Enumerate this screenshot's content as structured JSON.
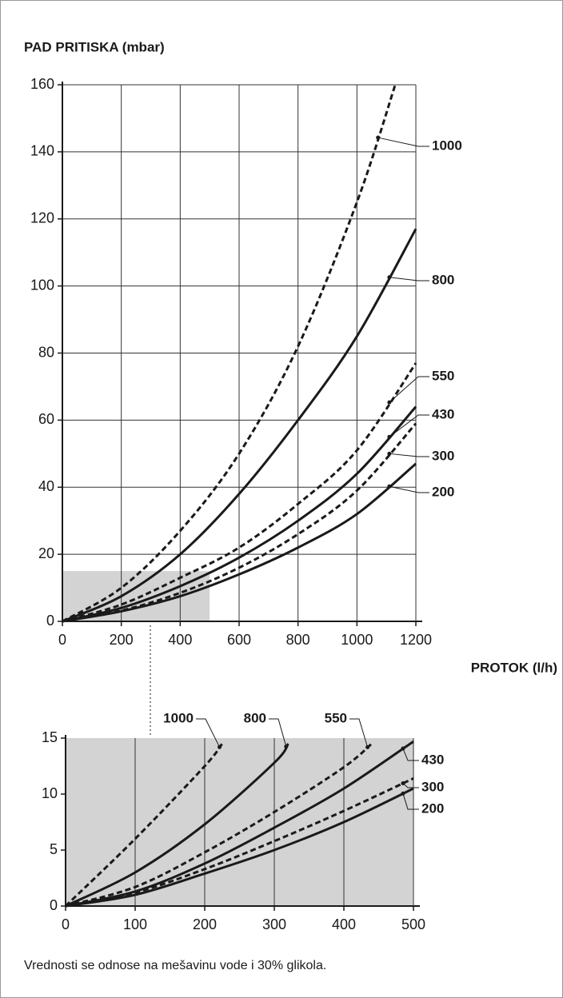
{
  "chart_data": [
    {
      "type": "line",
      "title": "PAD PRITISKA (mbar)",
      "x_label": "PROTOK (l/h)",
      "xlim": [
        0,
        1200
      ],
      "xticks": [
        0,
        200,
        400,
        600,
        800,
        1000,
        1200
      ],
      "ylim": [
        0,
        160
      ],
      "yticks": [
        0,
        20,
        40,
        60,
        80,
        100,
        120,
        140,
        160
      ],
      "grid": true,
      "series": [
        {
          "name": "1000",
          "color": "#1a1a1a",
          "dashed": true,
          "x": [
            0,
            200,
            400,
            600,
            800,
            1000,
            1130
          ],
          "values": [
            0,
            10,
            27,
            50,
            82,
            125,
            160
          ]
        },
        {
          "name": "800",
          "color": "#1a1a1a",
          "dashed": false,
          "x": [
            0,
            200,
            400,
            600,
            800,
            1000,
            1200
          ],
          "values": [
            0,
            7.5,
            20,
            38,
            60,
            85,
            117
          ]
        },
        {
          "name": "550",
          "color": "#1a1a1a",
          "dashed": true,
          "x": [
            0,
            200,
            400,
            600,
            800,
            1000,
            1200
          ],
          "values": [
            0,
            5,
            13,
            22,
            35,
            51,
            77
          ]
        },
        {
          "name": "430",
          "color": "#1a1a1a",
          "dashed": false,
          "x": [
            0,
            200,
            400,
            600,
            800,
            1000,
            1200
          ],
          "values": [
            0,
            4,
            10.5,
            19,
            30,
            44,
            64
          ]
        },
        {
          "name": "300",
          "color": "#1a1a1a",
          "dashed": true,
          "x": [
            0,
            200,
            400,
            600,
            800,
            1000,
            1200
          ],
          "values": [
            0,
            3.2,
            8.5,
            16,
            26,
            39,
            59
          ]
        },
        {
          "name": "200",
          "color": "#1a1a1a",
          "dashed": false,
          "x": [
            0,
            200,
            400,
            600,
            800,
            1000,
            1200
          ],
          "values": [
            0,
            3,
            7.5,
            14,
            22,
            32,
            47
          ]
        }
      ]
    },
    {
      "type": "line",
      "xlim": [
        0,
        500
      ],
      "xticks": [
        0,
        100,
        200,
        300,
        400,
        500
      ],
      "ylim": [
        0,
        15
      ],
      "yticks": [
        0,
        5,
        10,
        15
      ],
      "grid": true,
      "series": [
        {
          "name": "1000",
          "color": "#1a1a1a",
          "dashed": true,
          "x": [
            0,
            100,
            200,
            225
          ],
          "values": [
            0,
            6,
            12.5,
            14.5
          ]
        },
        {
          "name": "800",
          "color": "#1a1a1a",
          "dashed": false,
          "x": [
            0,
            100,
            200,
            300,
            320
          ],
          "values": [
            0,
            3,
            7.3,
            12.8,
            14.5
          ]
        },
        {
          "name": "550",
          "color": "#1a1a1a",
          "dashed": true,
          "x": [
            0,
            100,
            200,
            300,
            400,
            440
          ],
          "values": [
            0,
            1.7,
            4.8,
            8.4,
            12.4,
            14.5
          ]
        },
        {
          "name": "430",
          "color": "#1a1a1a",
          "dashed": false,
          "x": [
            0,
            100,
            200,
            300,
            400,
            500
          ],
          "values": [
            0,
            1.3,
            3.8,
            7,
            10.5,
            14.7
          ]
        },
        {
          "name": "300",
          "color": "#1a1a1a",
          "dashed": true,
          "x": [
            0,
            100,
            200,
            300,
            400,
            500
          ],
          "values": [
            0,
            1.2,
            3.3,
            5.8,
            8.5,
            11.4
          ]
        },
        {
          "name": "200",
          "color": "#1a1a1a",
          "dashed": false,
          "x": [
            0,
            100,
            200,
            300,
            400,
            500
          ],
          "values": [
            0,
            1,
            2.9,
            5,
            7.5,
            10.5
          ]
        }
      ]
    }
  ],
  "note": "Vrednosti se odnose na mešavinu vode i 30% glikola."
}
